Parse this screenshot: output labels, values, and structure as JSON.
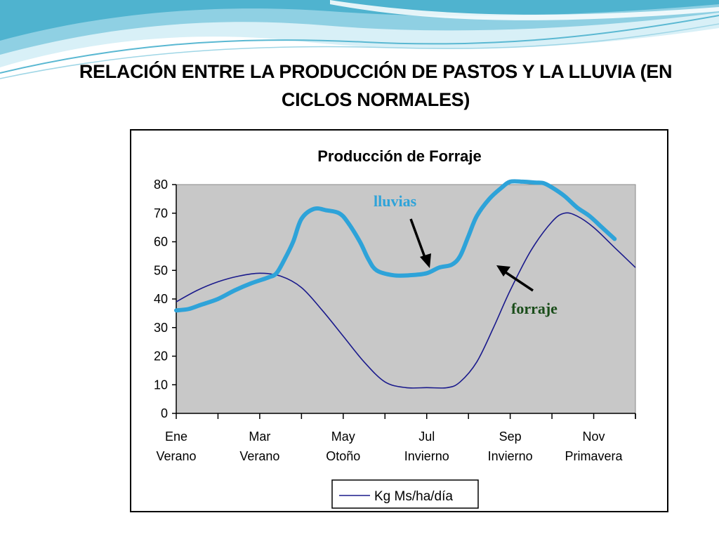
{
  "slide": {
    "title": "RELACIÓN ENTRE LA PRODUCCIÓN DE PASTOS Y LA LLUVIA (EN CICLOS NORMALES)"
  },
  "colors": {
    "rain_line": "#2ea3d9",
    "forage_line": "#1a1a8c",
    "plot_bg": "#c8c8c8",
    "lluvias_text": "#2ea3d9",
    "forraje_text": "#1a4d1a",
    "wave_light": "#bfe6f2",
    "wave_dark": "#4fb3cf"
  },
  "chart_data": {
    "type": "line",
    "title": "Producción de Forraje",
    "xlabel": "",
    "ylabel": "",
    "xlim": [
      0,
      11
    ],
    "ylim": [
      0,
      80
    ],
    "yticks": [
      0,
      10,
      20,
      30,
      40,
      50,
      60,
      70,
      80
    ],
    "x_tick_labels": [
      {
        "x": 0,
        "month": "Ene",
        "season": "Verano"
      },
      {
        "x": 2,
        "month": "Mar",
        "season": "Verano"
      },
      {
        "x": 4,
        "month": "May",
        "season": "Otoño"
      },
      {
        "x": 6,
        "month": "Jul",
        "season": "Invierno"
      },
      {
        "x": 8,
        "month": "Sep",
        "season": "Invierno"
      },
      {
        "x": 10,
        "month": "Nov",
        "season": "Primavera"
      }
    ],
    "series": [
      {
        "name": "Kg Ms/ha/día",
        "in_legend": true,
        "x": [
          0,
          0.5,
          1,
          1.5,
          2,
          2.5,
          3,
          3.5,
          4,
          4.5,
          5,
          5.5,
          6,
          6.5,
          6.8,
          7.2,
          7.6,
          8,
          8.5,
          9,
          9.3,
          9.6,
          10,
          10.5,
          11
        ],
        "y": [
          39,
          43,
          46,
          48,
          49,
          48,
          44,
          36,
          27,
          18,
          11,
          9,
          9,
          9,
          11,
          18,
          30,
          43,
          57,
          67,
          70,
          69,
          65,
          58,
          51
        ]
      },
      {
        "name": "lluvias",
        "in_legend": false,
        "x": [
          0,
          0.3,
          0.6,
          1,
          1.4,
          1.8,
          2.2,
          2.4,
          2.6,
          2.8,
          3.0,
          3.3,
          3.6,
          3.9,
          4.1,
          4.4,
          4.6,
          4.8,
          5.2,
          5.6,
          6.0,
          6.3,
          6.6,
          6.8,
          7.0,
          7.2,
          7.5,
          7.8,
          8.0,
          8.3,
          8.6,
          8.8,
          9.0,
          9.3,
          9.6,
          9.9,
          10.2,
          10.5
        ],
        "y": [
          36,
          36.5,
          38,
          40,
          43,
          45.5,
          47.5,
          49,
          54,
          60,
          68,
          71.5,
          71,
          70,
          67,
          60,
          54,
          50,
          48.3,
          48.3,
          49,
          51,
          52,
          55,
          62,
          69,
          75,
          79,
          81,
          81,
          80.7,
          80.5,
          79,
          76,
          72,
          69,
          65,
          61
        ]
      }
    ],
    "annotations": [
      {
        "text": "lluvias",
        "color": "lluvias"
      },
      {
        "text": "forraje",
        "color": "forraje"
      }
    ]
  }
}
